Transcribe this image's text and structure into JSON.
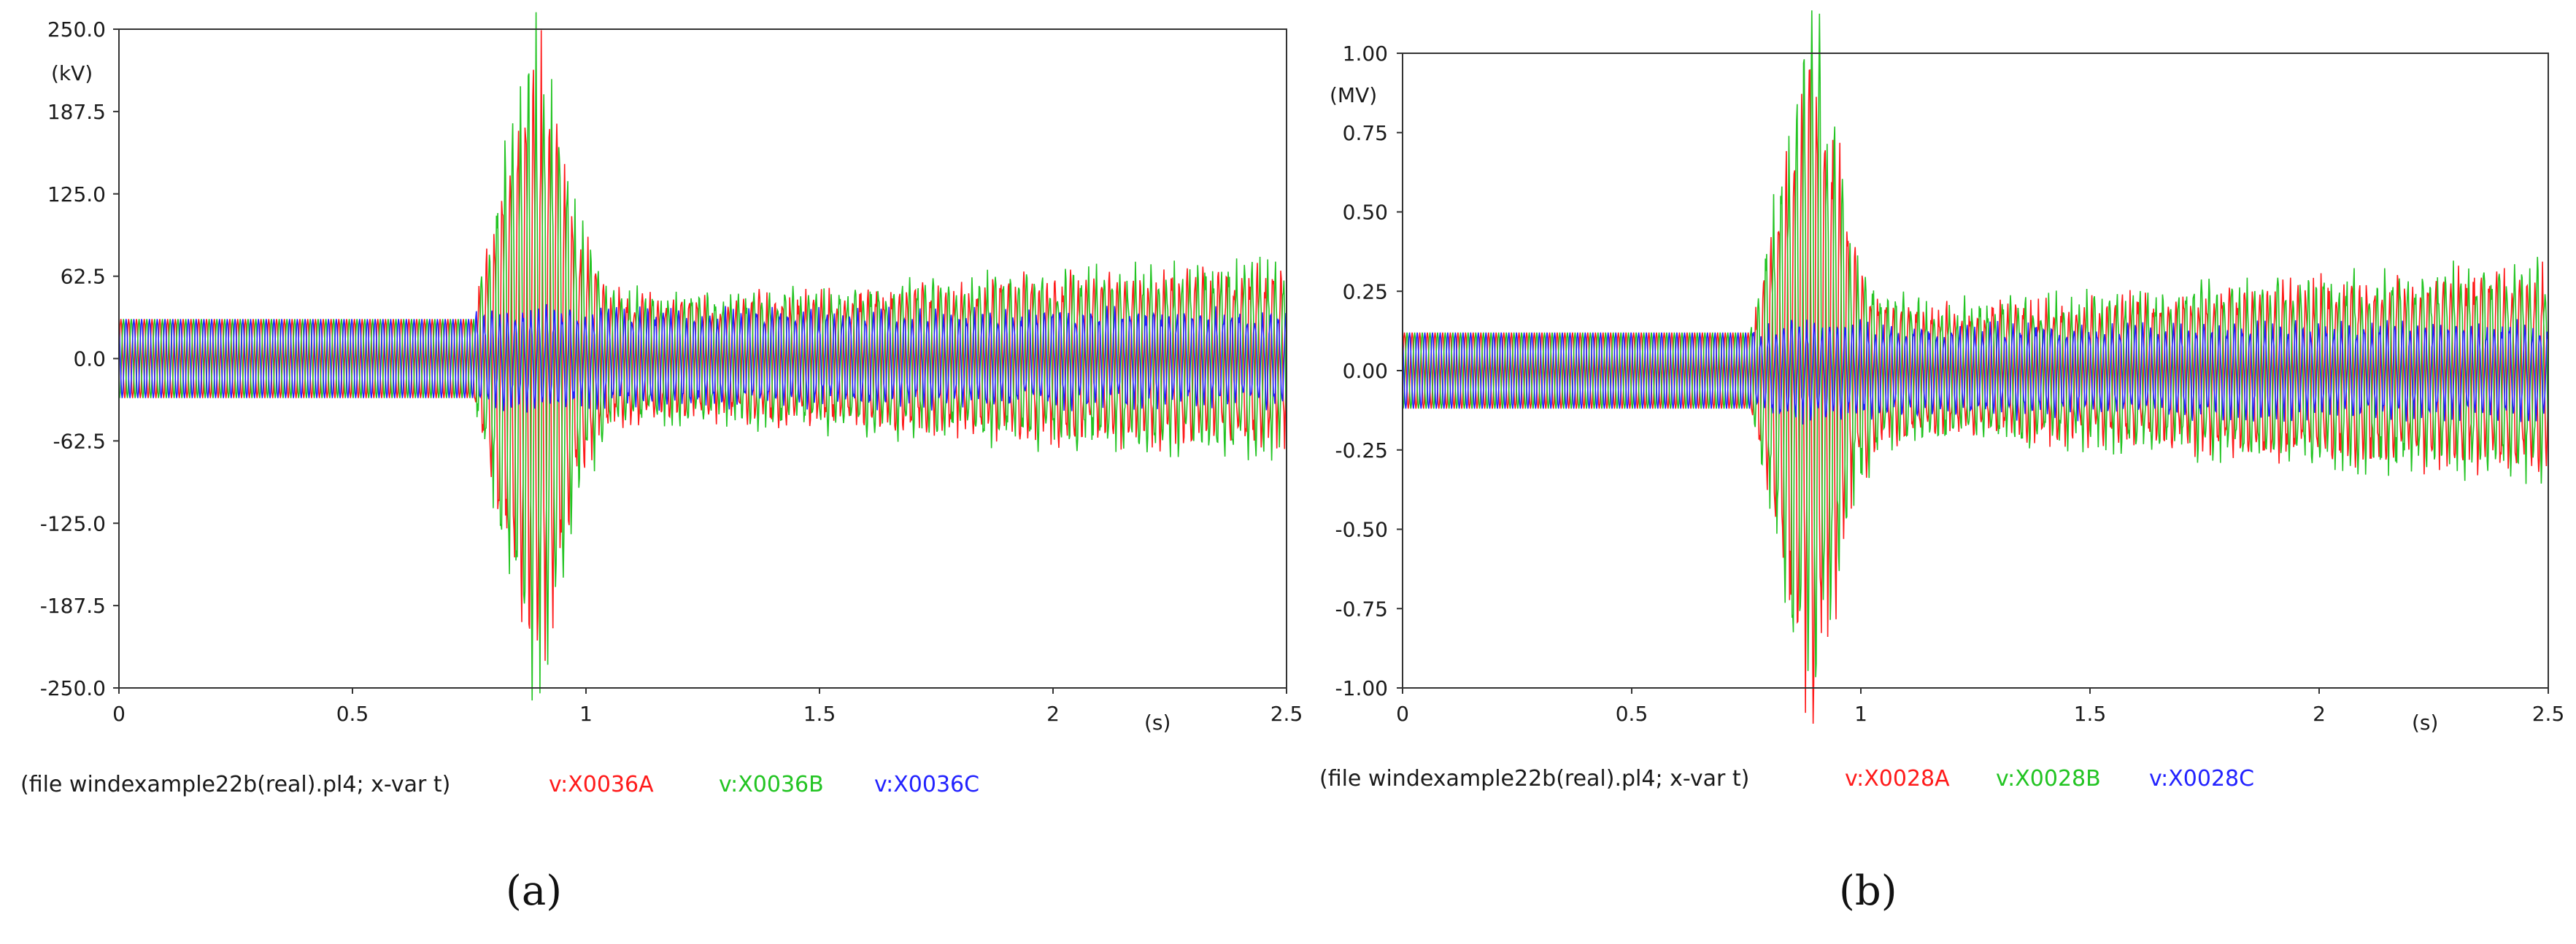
{
  "colors": {
    "phaseA": "#ff1a1a",
    "phaseB": "#22c422",
    "phaseC": "#2222ff",
    "text": "#1a1a1a",
    "frame": "#333333"
  },
  "chart_data": [
    {
      "type": "line",
      "panel_label": "(a)",
      "y_unit": "(kV)",
      "x_unit": "(s)",
      "ylim": [
        -250.0,
        250.0
      ],
      "xlim": [
        0,
        2.5
      ],
      "y_ticks": [
        "250.0",
        "187.5",
        "125.0",
        "62.5",
        "0.0",
        "-62.5",
        "-125.0",
        "-187.5",
        "-250.0"
      ],
      "y_tick_values": [
        250,
        187.5,
        125,
        62.5,
        0,
        -62.5,
        -125,
        -187.5,
        -250
      ],
      "x_ticks": [
        "0",
        "0.5",
        "1",
        "1.5",
        "2",
        "2.5"
      ],
      "x_tick_values": [
        0,
        0.5,
        1,
        1.5,
        2,
        2.5
      ],
      "grid": false,
      "legend_file": "(file windexample22b(real).pl4; x-var t)",
      "envelope": {
        "t": [
          0.0,
          0.76,
          0.78,
          0.82,
          0.86,
          0.9,
          0.94,
          0.98,
          1.05,
          1.2,
          1.5,
          2.0,
          2.5
        ],
        "amp_AB": [
          30,
          30,
          60,
          120,
          180,
          210,
          160,
          90,
          45,
          40,
          45,
          55,
          60
        ],
        "amp_C": [
          30,
          30,
          30,
          32,
          34,
          35,
          33,
          32,
          32,
          32,
          32,
          32,
          32
        ]
      },
      "series": [
        {
          "name": "v:X0036A",
          "color": "#ff1a1a",
          "peak": 200,
          "phase_deg": 0
        },
        {
          "name": "v:X0036B",
          "color": "#22c422",
          "peak": 220,
          "phase_deg": -120
        },
        {
          "name": "v:X0036C",
          "color": "#2222ff",
          "peak": 35,
          "phase_deg": 120
        }
      ]
    },
    {
      "type": "line",
      "panel_label": "(b)",
      "y_unit": "(MV)",
      "x_unit": "(s)",
      "ylim": [
        -1.0,
        1.0
      ],
      "xlim": [
        0,
        2.5
      ],
      "y_ticks": [
        "1.00",
        "0.75",
        "0.50",
        "0.25",
        "0.00",
        "-0.25",
        "-0.50",
        "-0.75",
        "-1.00"
      ],
      "y_tick_values": [
        1.0,
        0.75,
        0.5,
        0.25,
        0.0,
        -0.25,
        -0.5,
        -0.75,
        -1.0
      ],
      "x_ticks": [
        "0",
        "0.5",
        "1",
        "1.5",
        "2",
        "2.5"
      ],
      "x_tick_values": [
        0,
        0.5,
        1,
        1.5,
        2,
        2.5
      ],
      "grid": false,
      "legend_file": "(file windexample22b(real).pl4; x-var t)",
      "envelope": {
        "t": [
          0.0,
          0.76,
          0.78,
          0.82,
          0.86,
          0.9,
          0.94,
          0.98,
          1.05,
          1.2,
          1.5,
          2.0,
          2.5
        ],
        "amp_AB": [
          0.12,
          0.12,
          0.25,
          0.5,
          0.8,
          0.95,
          0.7,
          0.35,
          0.2,
          0.18,
          0.2,
          0.25,
          0.28
        ],
        "amp_C": [
          0.12,
          0.12,
          0.12,
          0.13,
          0.14,
          0.14,
          0.13,
          0.13,
          0.13,
          0.13,
          0.13,
          0.13,
          0.13
        ]
      },
      "series": [
        {
          "name": "v:X0028A",
          "color": "#ff1a1a",
          "peak": 0.87,
          "phase_deg": 0
        },
        {
          "name": "v:X0028B",
          "color": "#22c422",
          "peak": 1.0,
          "phase_deg": -120
        },
        {
          "name": "v:X0028C",
          "color": "#2222ff",
          "peak": 0.14,
          "phase_deg": 120
        }
      ]
    }
  ]
}
